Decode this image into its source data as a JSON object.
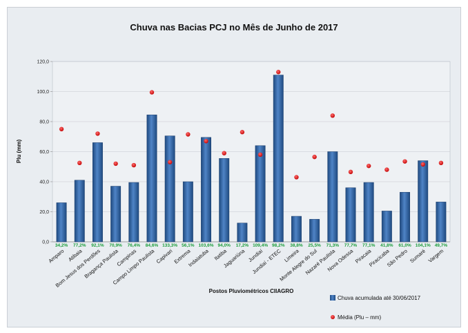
{
  "chart_data": {
    "type": "bar",
    "title": "Chuva nas Bacias PCJ no Mês de Junho de 2017",
    "xlabel": "Postos Pluviométricos CIIAGRO",
    "ylabel": "Plu (mm)",
    "ylim": [
      0,
      120
    ],
    "yticks": [
      "0,0",
      "20,0",
      "40,0",
      "60,0",
      "80,0",
      "100,0",
      "120,0"
    ],
    "grid": true,
    "legend_position": "bottom-right",
    "categories": [
      "Amparo",
      "Atibaia",
      "Bom Jesus dos Perdões",
      "Bragança Paulista",
      "Campinas",
      "Campo Limpo Paulista",
      "Capivari",
      "Extrema",
      "Indaiatuba",
      "Itatiba",
      "Jaguariúna",
      "Jundiaí",
      "Jundiaí - ETEC",
      "Limeira",
      "Monte Alegre do Sul",
      "Nazaré Paulista",
      "Nova Odessa",
      "Piracaia",
      "Piracicaba",
      "São Pedro",
      "Sumaré",
      "Vargem"
    ],
    "series": [
      {
        "name": "Chuva acumulada até 30/06/2017",
        "type": "bar",
        "color": "#2f5f9e",
        "values": [
          26,
          41,
          66,
          37,
          39.5,
          84.5,
          70.5,
          40,
          69.5,
          55.5,
          12.5,
          64,
          111,
          17,
          15,
          60,
          36,
          39.5,
          20.5,
          33,
          54,
          26.5
        ]
      },
      {
        "name": "Média (Plu – mm)",
        "type": "scatter",
        "color": "#e01010",
        "values": [
          75,
          52.5,
          72,
          52,
          51,
          99.5,
          53,
          71.5,
          67,
          59,
          73,
          58,
          113,
          43,
          56.5,
          84,
          46.5,
          50.5,
          48,
          53.5,
          51.5,
          52.5
        ]
      }
    ],
    "percent_labels": [
      "34,2%",
      "77,2%",
      "92,1%",
      "70,9%",
      "76,4%",
      "84,6%",
      "133,3%",
      "56,1%",
      "103,6%",
      "94,0%",
      "17,2%",
      "109,4%",
      "98,2%",
      "38,8%",
      "25,5%",
      "71,3%",
      "77,7%",
      "77,1%",
      "41,8%",
      "61,0%",
      "104,1%",
      "49,7%"
    ]
  }
}
